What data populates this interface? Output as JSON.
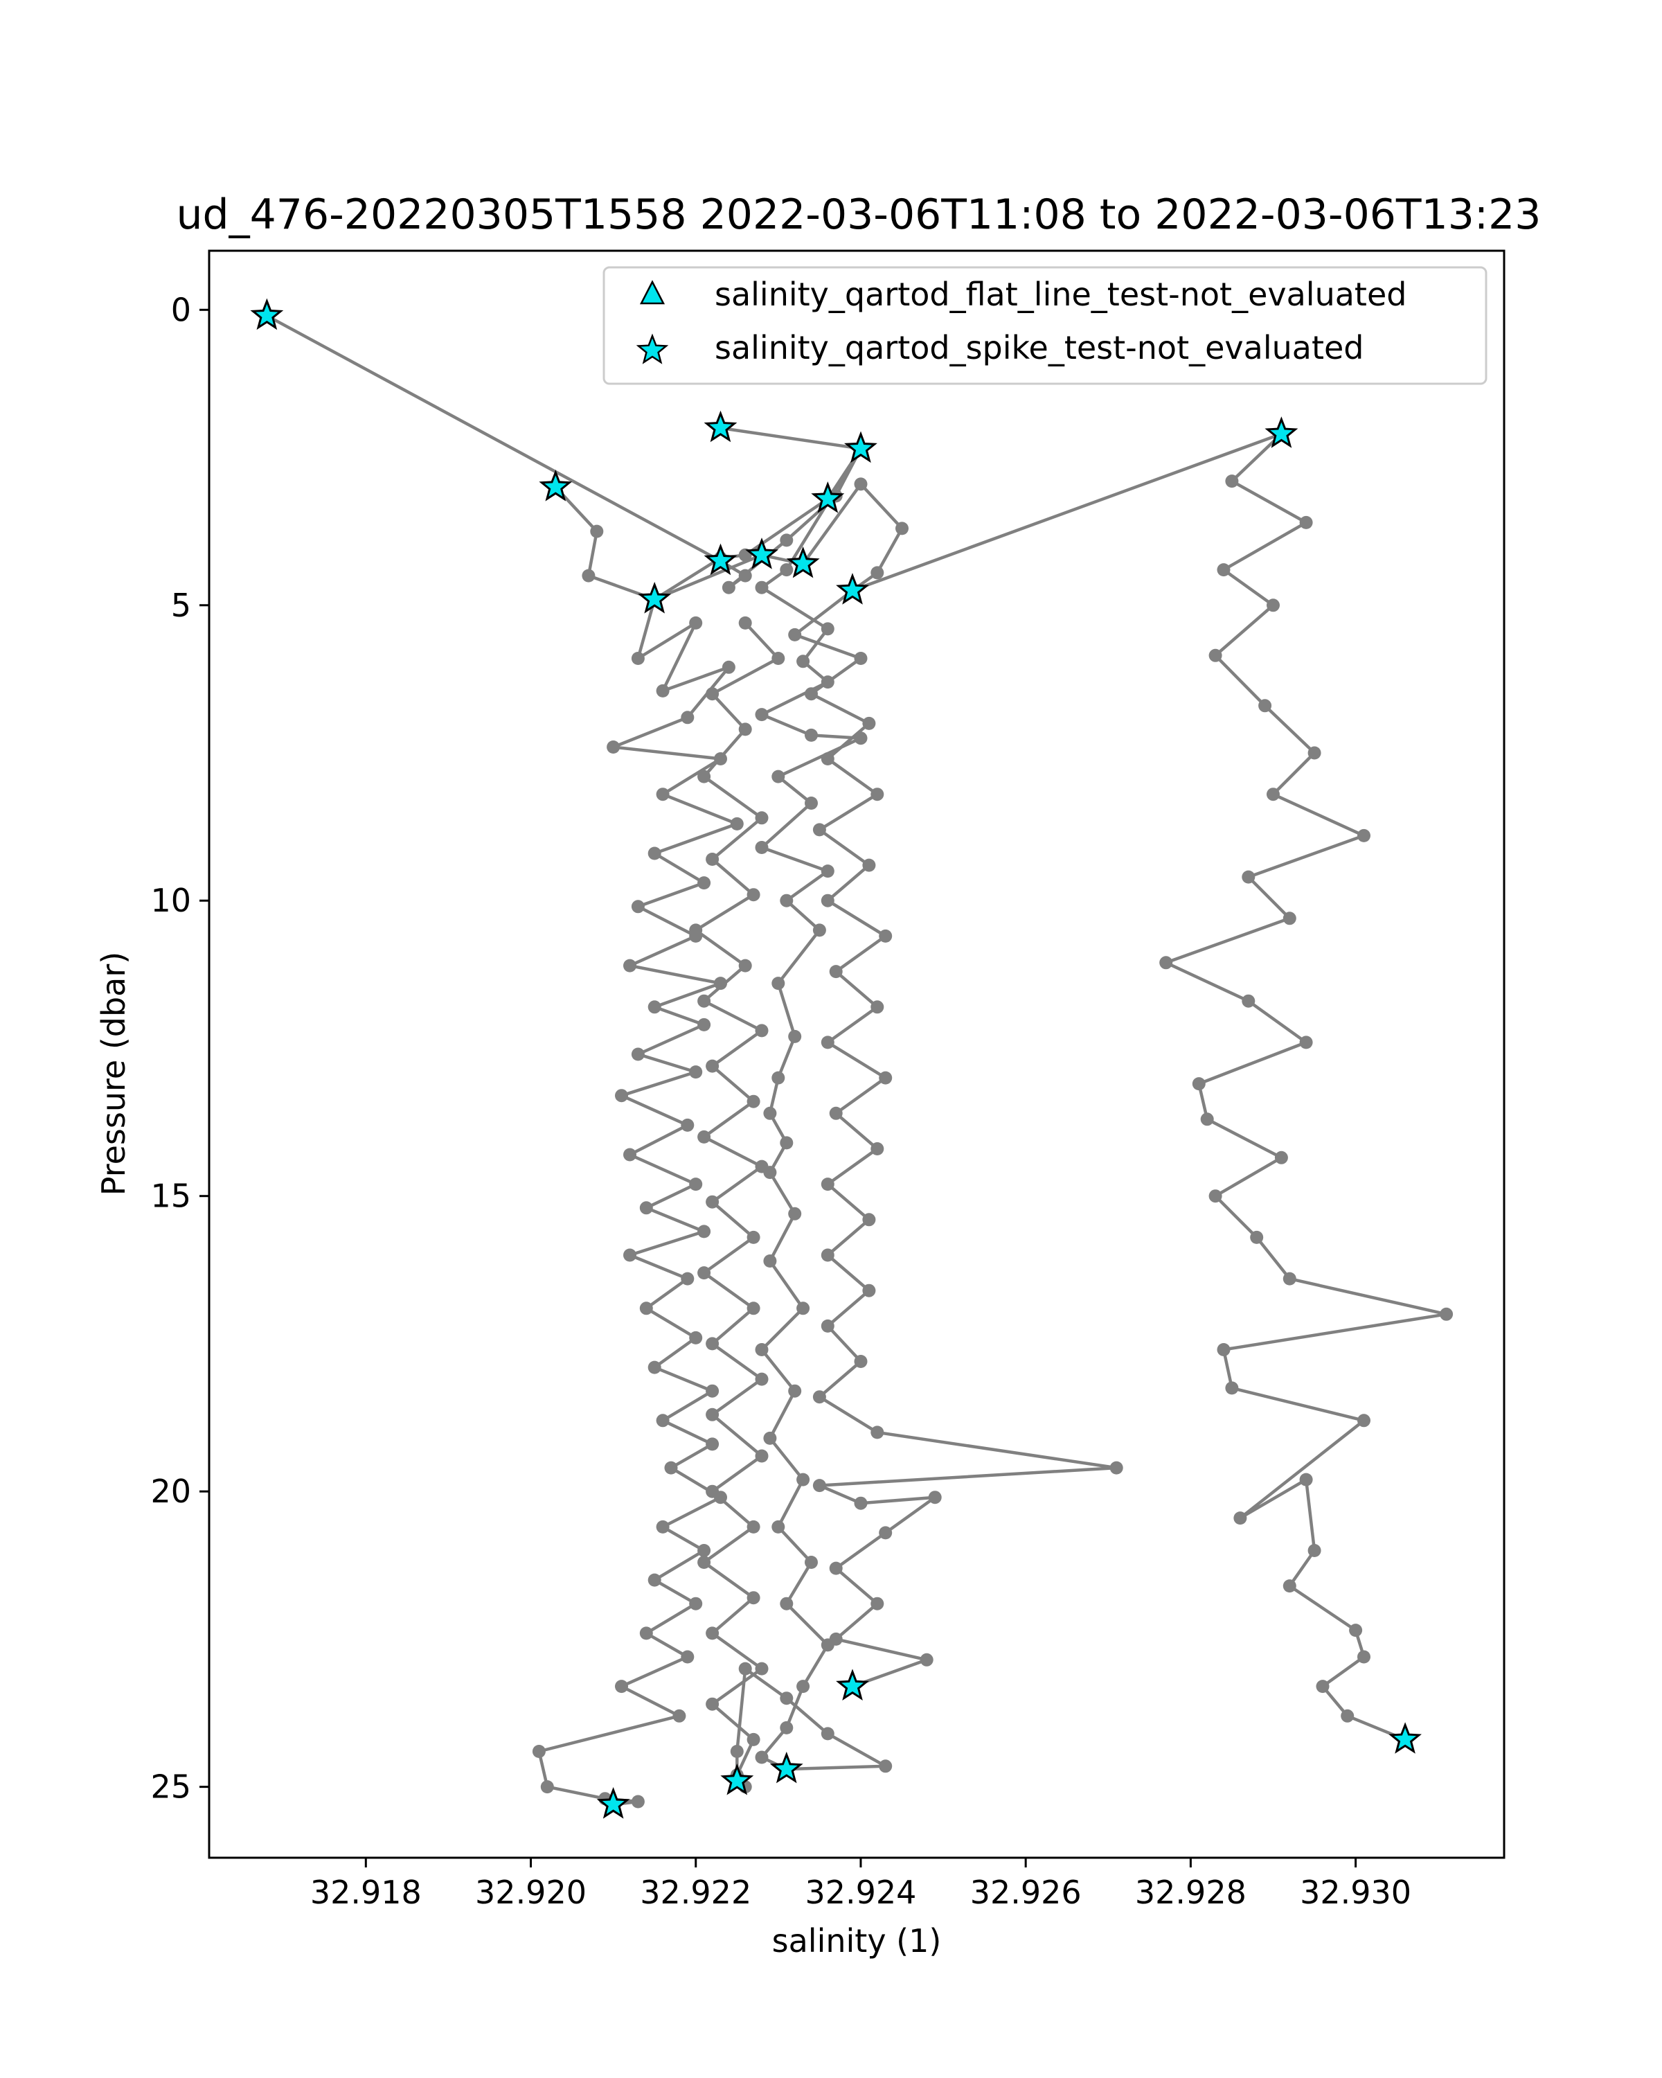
{
  "chart_data": {
    "type": "line",
    "title": "ud_476-20220305T1558 2022-03-06T11:08 to 2022-03-06T13:23",
    "xlabel": "salinity (1)",
    "ylabel": "Pressure (dbar)",
    "xlim": [
      32.9161,
      32.9318
    ],
    "ylim": [
      26.2,
      -1.0
    ],
    "y_inverted": true,
    "grid": false,
    "legend_position": "top-right",
    "xticks": [
      32.918,
      32.92,
      32.922,
      32.924,
      32.926,
      32.928,
      32.93
    ],
    "xtick_labels": [
      "32.918",
      "32.920",
      "32.922",
      "32.924",
      "32.926",
      "32.928",
      "32.930"
    ],
    "yticks": [
      0,
      5,
      10,
      15,
      20,
      25
    ],
    "ytick_labels": [
      "0",
      "5",
      "10",
      "15",
      "20",
      "25"
    ],
    "line_color": "#808080",
    "marker_face_color": "#00e5ee",
    "marker_edge_color": "#000000",
    "legend": [
      {
        "label": "salinity_qartod_flat_line_test-not_evaluated",
        "marker": "triangle"
      },
      {
        "label": "salinity_qartod_spike_test-not_evaluated",
        "marker": "star"
      }
    ],
    "series": [
      {
        "points": [
          [
            32.9168,
            0.1
          ],
          [
            32.9223,
            4.25
          ],
          [
            32.9226,
            4.5
          ],
          [
            32.9224,
            4.7
          ],
          [
            32.9231,
            3.9
          ],
          [
            32.9237,
            3.15
          ],
          [
            32.924,
            2.35
          ],
          [
            32.9236,
            3.2
          ],
          [
            32.9226,
            4.15
          ],
          [
            32.9223,
            4.2
          ],
          [
            32.9215,
            4.9
          ],
          [
            32.9228,
            4.15
          ],
          [
            32.9233,
            4.3
          ],
          [
            32.924,
            2.95
          ],
          [
            32.9245,
            3.7
          ],
          [
            32.9242,
            4.45
          ],
          [
            32.9239,
            4.75
          ]
        ]
      },
      {
        "points": [
          [
            32.9223,
            2.0
          ],
          [
            32.924,
            2.35
          ],
          [
            32.9231,
            4.4
          ],
          [
            32.9228,
            4.7
          ],
          [
            32.9236,
            5.4
          ],
          [
            32.9233,
            5.95
          ],
          [
            32.9236,
            6.3
          ],
          [
            32.9228,
            6.85
          ],
          [
            32.9234,
            7.2
          ],
          [
            32.924,
            7.25
          ],
          [
            32.923,
            7.9
          ],
          [
            32.9234,
            8.35
          ],
          [
            32.9228,
            9.1
          ],
          [
            32.9236,
            9.5
          ],
          [
            32.9231,
            10.0
          ],
          [
            32.9235,
            10.5
          ],
          [
            32.923,
            11.4
          ],
          [
            32.9232,
            12.3
          ],
          [
            32.923,
            13.0
          ],
          [
            32.9229,
            13.6
          ],
          [
            32.9231,
            14.1
          ],
          [
            32.9229,
            14.6
          ],
          [
            32.9232,
            15.3
          ],
          [
            32.9229,
            16.1
          ],
          [
            32.9233,
            16.9
          ],
          [
            32.9228,
            17.6
          ],
          [
            32.9232,
            18.3
          ],
          [
            32.9229,
            19.1
          ],
          [
            32.9233,
            19.8
          ],
          [
            32.923,
            20.6
          ],
          [
            32.9234,
            21.2
          ],
          [
            32.9231,
            21.9
          ],
          [
            32.9236,
            22.6
          ],
          [
            32.9233,
            23.3
          ],
          [
            32.9231,
            24.0
          ],
          [
            32.9228,
            24.5
          ],
          [
            32.9231,
            24.7
          ]
        ]
      },
      {
        "points": [
          [
            32.9203,
            3.0
          ],
          [
            32.9208,
            3.75
          ],
          [
            32.9207,
            4.5
          ],
          [
            32.9215,
            4.9
          ],
          [
            32.9213,
            5.9
          ],
          [
            32.922,
            5.3
          ],
          [
            32.9216,
            6.45
          ],
          [
            32.9224,
            6.05
          ],
          [
            32.9219,
            6.9
          ],
          [
            32.921,
            7.4
          ],
          [
            32.9223,
            7.6
          ],
          [
            32.9216,
            8.2
          ],
          [
            32.9225,
            8.7
          ],
          [
            32.9215,
            9.2
          ],
          [
            32.9221,
            9.7
          ],
          [
            32.9213,
            10.1
          ],
          [
            32.922,
            10.6
          ],
          [
            32.9212,
            11.1
          ],
          [
            32.9223,
            11.4
          ],
          [
            32.9215,
            11.8
          ],
          [
            32.9221,
            12.1
          ],
          [
            32.9213,
            12.6
          ],
          [
            32.922,
            12.9
          ],
          [
            32.9211,
            13.3
          ],
          [
            32.9219,
            13.8
          ],
          [
            32.9212,
            14.3
          ],
          [
            32.922,
            14.8
          ],
          [
            32.9214,
            15.2
          ],
          [
            32.9221,
            15.6
          ],
          [
            32.9212,
            16.0
          ],
          [
            32.9219,
            16.4
          ],
          [
            32.9214,
            16.9
          ],
          [
            32.922,
            17.4
          ],
          [
            32.9215,
            17.9
          ],
          [
            32.9222,
            18.3
          ],
          [
            32.9216,
            18.8
          ],
          [
            32.9222,
            19.2
          ],
          [
            32.9217,
            19.6
          ],
          [
            32.9223,
            20.1
          ],
          [
            32.9216,
            20.6
          ],
          [
            32.9221,
            21.0
          ],
          [
            32.9215,
            21.5
          ],
          [
            32.922,
            21.9
          ],
          [
            32.9214,
            22.4
          ],
          [
            32.9219,
            22.8
          ],
          [
            32.9211,
            23.3
          ],
          [
            32.9218,
            23.8
          ],
          [
            32.9201,
            24.4
          ],
          [
            32.9202,
            25.0
          ],
          [
            32.9209,
            25.2
          ],
          [
            32.9213,
            25.25
          ],
          [
            32.921,
            25.3
          ]
        ]
      },
      {
        "points": [
          [
            32.9226,
            5.3
          ],
          [
            32.923,
            5.9
          ],
          [
            32.9222,
            6.5
          ],
          [
            32.9226,
            7.1
          ],
          [
            32.9221,
            7.9
          ],
          [
            32.9228,
            8.6
          ],
          [
            32.9222,
            9.3
          ],
          [
            32.9227,
            9.9
          ],
          [
            32.922,
            10.5
          ],
          [
            32.9226,
            11.1
          ],
          [
            32.9221,
            11.7
          ],
          [
            32.9228,
            12.2
          ],
          [
            32.9222,
            12.8
          ],
          [
            32.9227,
            13.4
          ],
          [
            32.9221,
            14.0
          ],
          [
            32.9228,
            14.5
          ],
          [
            32.9222,
            15.1
          ],
          [
            32.9227,
            15.7
          ],
          [
            32.9221,
            16.3
          ],
          [
            32.9227,
            16.9
          ],
          [
            32.9222,
            17.5
          ],
          [
            32.9228,
            18.1
          ],
          [
            32.9222,
            18.7
          ],
          [
            32.9228,
            19.4
          ],
          [
            32.9222,
            20.0
          ],
          [
            32.9227,
            20.6
          ],
          [
            32.9221,
            21.2
          ],
          [
            32.9227,
            21.8
          ],
          [
            32.9222,
            22.4
          ],
          [
            32.9228,
            23.0
          ],
          [
            32.9222,
            23.6
          ],
          [
            32.9227,
            24.2
          ],
          [
            32.9225,
            24.8
          ],
          [
            32.9226,
            25.0
          ]
        ]
      },
      {
        "points": [
          [
            32.9239,
            4.75
          ],
          [
            32.9232,
            5.5
          ],
          [
            32.924,
            5.9
          ],
          [
            32.9234,
            6.5
          ],
          [
            32.9241,
            7.0
          ],
          [
            32.9236,
            7.6
          ],
          [
            32.9242,
            8.2
          ],
          [
            32.9235,
            8.8
          ],
          [
            32.9241,
            9.4
          ],
          [
            32.9236,
            10.0
          ],
          [
            32.9243,
            10.6
          ],
          [
            32.9237,
            11.2
          ],
          [
            32.9242,
            11.8
          ],
          [
            32.9236,
            12.4
          ],
          [
            32.9243,
            13.0
          ],
          [
            32.9237,
            13.6
          ],
          [
            32.9242,
            14.2
          ],
          [
            32.9236,
            14.8
          ],
          [
            32.9241,
            15.4
          ],
          [
            32.9236,
            16.0
          ],
          [
            32.9241,
            16.6
          ],
          [
            32.9236,
            17.2
          ],
          [
            32.924,
            17.8
          ],
          [
            32.9235,
            18.4
          ],
          [
            32.9242,
            19.0
          ],
          [
            32.9271,
            19.6
          ],
          [
            32.9235,
            19.9
          ],
          [
            32.924,
            20.2
          ],
          [
            32.9249,
            20.1
          ],
          [
            32.9243,
            20.7
          ],
          [
            32.9237,
            21.3
          ],
          [
            32.9242,
            21.9
          ],
          [
            32.9237,
            22.5
          ],
          [
            32.9248,
            22.85
          ],
          [
            32.9239,
            23.3
          ]
        ]
      },
      {
        "points": [
          [
            32.9231,
            24.7
          ],
          [
            32.9243,
            24.65
          ],
          [
            32.9236,
            24.1
          ],
          [
            32.9231,
            23.5
          ],
          [
            32.9226,
            23.0
          ],
          [
            32.9225,
            24.4
          ],
          [
            32.9225,
            24.9
          ]
        ]
      },
      {
        "points": [
          [
            32.9239,
            4.75
          ],
          [
            32.9291,
            2.1
          ],
          [
            32.9285,
            2.9
          ],
          [
            32.9294,
            3.6
          ],
          [
            32.9284,
            4.4
          ],
          [
            32.929,
            5.0
          ],
          [
            32.9283,
            5.85
          ],
          [
            32.9289,
            6.7
          ],
          [
            32.9295,
            7.5
          ],
          [
            32.929,
            8.2
          ],
          [
            32.9301,
            8.9
          ],
          [
            32.9287,
            9.6
          ],
          [
            32.9292,
            10.3
          ],
          [
            32.9277,
            11.05
          ],
          [
            32.9287,
            11.7
          ],
          [
            32.9294,
            12.4
          ],
          [
            32.9281,
            13.1
          ],
          [
            32.9282,
            13.7
          ],
          [
            32.9291,
            14.35
          ],
          [
            32.9283,
            15.0
          ],
          [
            32.9288,
            15.7
          ],
          [
            32.9292,
            16.4
          ],
          [
            32.9311,
            17.0
          ],
          [
            32.9284,
            17.6
          ],
          [
            32.9285,
            18.25
          ],
          [
            32.9301,
            18.8
          ],
          [
            32.9286,
            20.45
          ],
          [
            32.9294,
            19.8
          ],
          [
            32.9295,
            21.0
          ],
          [
            32.9292,
            21.6
          ],
          [
            32.93,
            22.35
          ],
          [
            32.9301,
            22.8
          ],
          [
            32.9296,
            23.3
          ],
          [
            32.9299,
            23.8
          ],
          [
            32.9306,
            24.2
          ]
        ]
      }
    ],
    "flagged_points_spike_test_not_evaluated": [
      [
        32.9168,
        0.1
      ],
      [
        32.9223,
        2.0
      ],
      [
        32.924,
        2.35
      ],
      [
        32.9291,
        2.1
      ],
      [
        32.9203,
        3.0
      ],
      [
        32.9236,
        3.2
      ],
      [
        32.9228,
        4.15
      ],
      [
        32.9223,
        4.25
      ],
      [
        32.9233,
        4.3
      ],
      [
        32.9215,
        4.9
      ],
      [
        32.9239,
        4.75
      ],
      [
        32.9239,
        23.3
      ],
      [
        32.9306,
        24.2
      ],
      [
        32.9231,
        24.7
      ],
      [
        32.9225,
        24.9
      ],
      [
        32.921,
        25.3
      ]
    ]
  }
}
